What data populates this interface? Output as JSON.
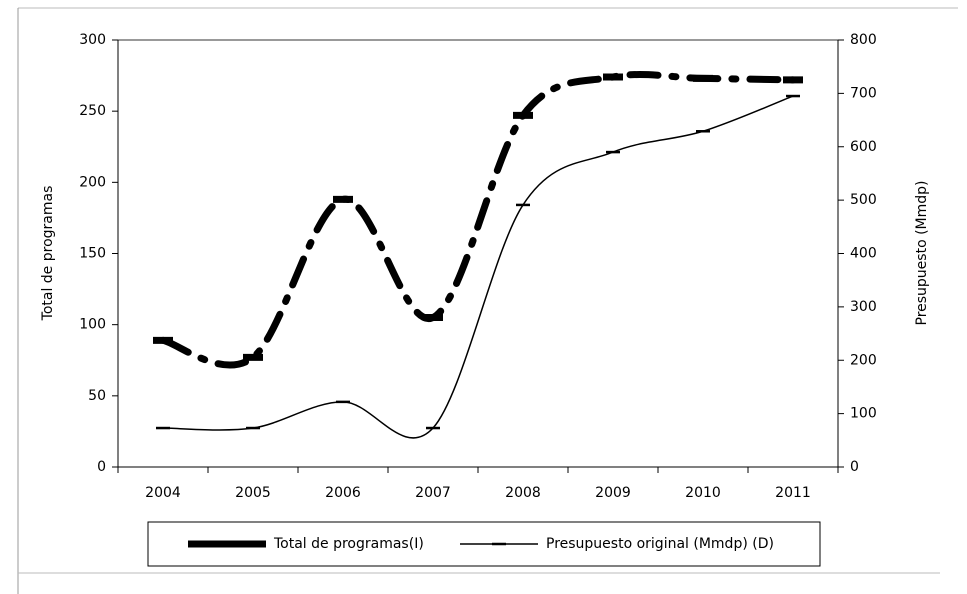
{
  "chart_data": {
    "type": "line",
    "categories": [
      "2004",
      "2005",
      "2006",
      "2007",
      "2008",
      "2009",
      "2010",
      "2011"
    ],
    "y_label": "Total de programas",
    "y2_label": "Presupuesto (Mmdp)",
    "ylim": [
      0,
      300
    ],
    "yticks": [
      0,
      50,
      100,
      150,
      200,
      250,
      300
    ],
    "y2lim": [
      0,
      800
    ],
    "y2ticks": [
      0,
      100,
      200,
      300,
      400,
      500,
      600,
      700,
      800
    ],
    "legend": "bottom",
    "series": [
      {
        "name": "Total de programas(I)",
        "color": "#000000",
        "style": "dash-dot",
        "values": [
          89,
          77,
          188,
          105,
          247,
          274,
          273,
          272
        ]
      },
      {
        "name": "Presupuesto original (Mmdp) (D)",
        "color": "#000000",
        "style": "solid",
        "axis": "y2",
        "values": [
          73,
          73,
          122,
          73,
          491,
          590,
          629,
          695
        ]
      }
    ]
  }
}
